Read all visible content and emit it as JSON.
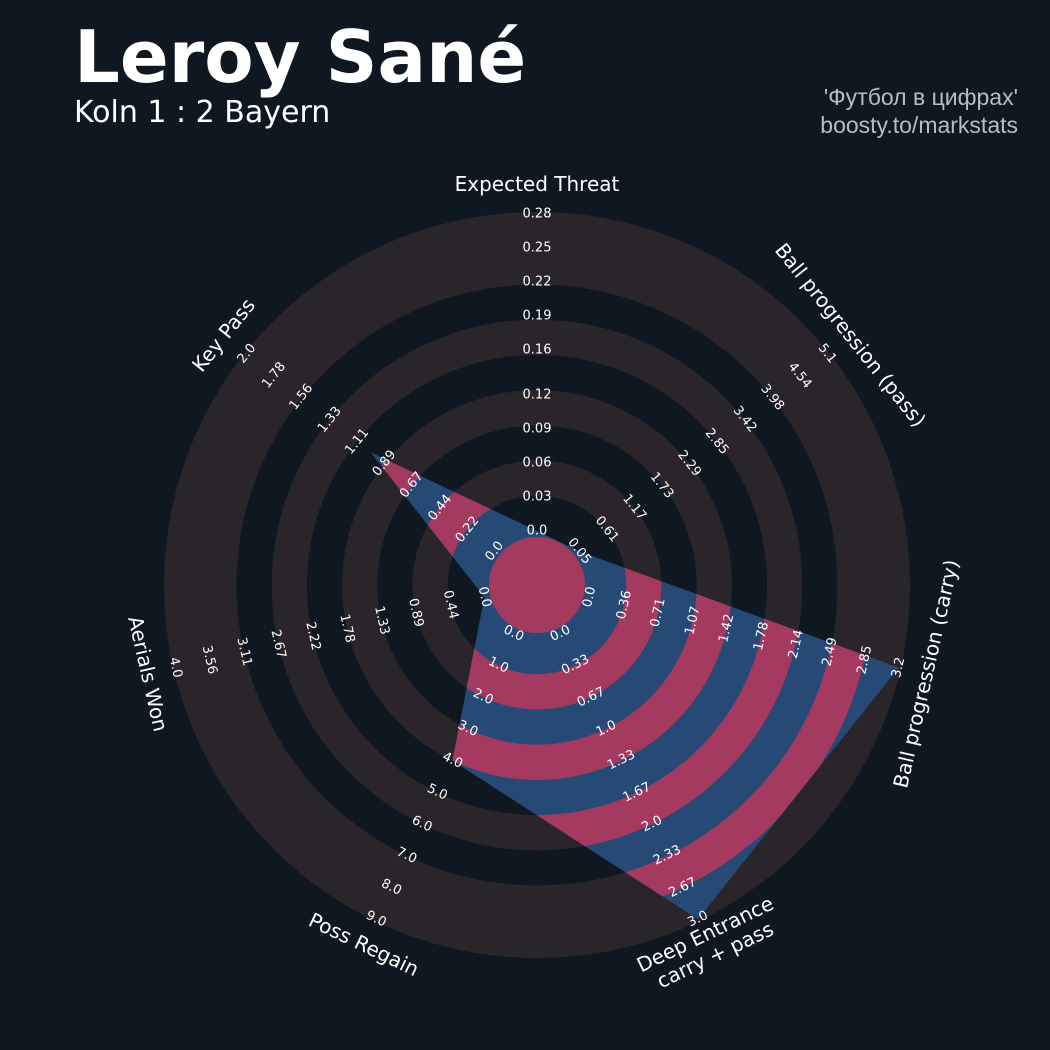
{
  "title": "Leroy Sané",
  "subtitle": "Koln 1 : 2 Bayern",
  "credits": [
    "'Футбол в цифрах'",
    "boosty.to/markstats"
  ],
  "chart_data": {
    "type": "radar",
    "color": "#264a75",
    "ring_color": "#a43a5f",
    "background_ring_color": "#29252b",
    "categories": [
      [
        "Expected Threat"
      ],
      [
        "Ball progression (pass)"
      ],
      [
        "Ball progression (carry)"
      ],
      [
        "Deep Entrance",
        "carry + pass"
      ],
      [
        "Poss Regain"
      ],
      [
        "Aerials Won"
      ],
      [
        "Key Pass"
      ]
    ],
    "values": [
      0,
      0.05,
      3.2,
      3,
      4,
      0,
      1
    ],
    "axes": [
      {
        "lim": [
          0,
          0.28
        ],
        "ticks": [
          {
            "value": 0,
            "label": "0.0"
          },
          0.03,
          0.06,
          0.09,
          0.12,
          0.16,
          0.19,
          0.22,
          0.25,
          0.28
        ]
      },
      {
        "lim": [
          0.05,
          5.1
        ],
        "ticks": [
          0.05,
          0.61,
          1.17,
          1.73,
          2.29,
          2.85,
          3.42,
          3.98,
          4.54,
          5.1
        ]
      },
      {
        "lim": [
          0,
          3.2
        ],
        "ticks": [
          {
            "value": 0,
            "label": "0.0"
          },
          0.36,
          0.71,
          1.07,
          1.42,
          1.78,
          2.14,
          2.49,
          2.85,
          3.2
        ]
      },
      {
        "lim": [
          0,
          3
        ],
        "ticks": [
          {
            "value": 0,
            "label": "0.0"
          },
          0.33,
          0.67,
          {
            "value": 1,
            "label": "1.0"
          },
          1.33,
          1.67,
          {
            "value": 2,
            "label": "2.0"
          },
          2.33,
          2.67,
          {
            "value": 3,
            "label": "3.0"
          }
        ]
      },
      {
        "lim": [
          0,
          9
        ],
        "ticks": [
          {
            "value": 0,
            "label": "0.0"
          },
          {
            "value": 1,
            "label": "1.0"
          },
          {
            "value": 2,
            "label": "2.0"
          },
          {
            "value": 3,
            "label": "3.0"
          },
          {
            "value": 4,
            "label": "4.0"
          },
          {
            "value": 5,
            "label": "5.0"
          },
          {
            "value": 6,
            "label": "6.0"
          },
          {
            "value": 7,
            "label": "7.0"
          },
          {
            "value": 8,
            "label": "8.0"
          },
          {
            "value": 9,
            "label": "9.0"
          }
        ]
      },
      {
        "lim": [
          0,
          4
        ],
        "ticks": [
          {
            "value": 0,
            "label": "0.0"
          },
          0.44,
          0.89,
          1.33,
          1.78,
          2.22,
          2.67,
          3.11,
          3.56,
          {
            "value": 4,
            "label": "4.0"
          }
        ]
      },
      {
        "lim": [
          0,
          2
        ],
        "ticks": [
          {
            "value": 0,
            "label": "0.0"
          },
          0.22,
          0.44,
          0.67,
          0.89,
          1.11,
          1.33,
          1.56,
          1.78,
          {
            "value": 2,
            "label": "2.0"
          }
        ]
      }
    ]
  }
}
